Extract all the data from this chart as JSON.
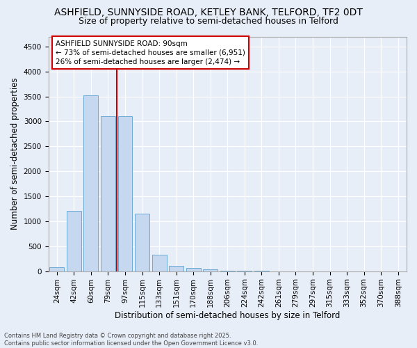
{
  "title1": "ASHFIELD, SUNNYSIDE ROAD, KETLEY BANK, TELFORD, TF2 0DT",
  "title2": "Size of property relative to semi-detached houses in Telford",
  "xlabel": "Distribution of semi-detached houses by size in Telford",
  "ylabel": "Number of semi-detached properties",
  "categories": [
    "24sqm",
    "42sqm",
    "60sqm",
    "79sqm",
    "97sqm",
    "115sqm",
    "133sqm",
    "151sqm",
    "170sqm",
    "188sqm",
    "206sqm",
    "224sqm",
    "242sqm",
    "261sqm",
    "279sqm",
    "297sqm",
    "315sqm",
    "333sqm",
    "352sqm",
    "370sqm",
    "388sqm"
  ],
  "values": [
    75,
    1210,
    3520,
    3110,
    3110,
    1145,
    335,
    105,
    65,
    30,
    10,
    5,
    2,
    1,
    0,
    0,
    0,
    0,
    0,
    0,
    0
  ],
  "bar_color": "#c5d8f0",
  "bar_edge_color": "#6aaad4",
  "vline_index": 3.5,
  "annotation_title": "ASHFIELD SUNNYSIDE ROAD: 90sqm",
  "annotation_line1": "← 73% of semi-detached houses are smaller (6,951)",
  "annotation_line2": "26% of semi-detached houses are larger (2,474) →",
  "annotation_box_color": "#ffffff",
  "annotation_box_edge": "#cc0000",
  "vline_color": "#cc0000",
  "ylim": [
    0,
    4700
  ],
  "yticks": [
    0,
    500,
    1000,
    1500,
    2000,
    2500,
    3000,
    3500,
    4000,
    4500
  ],
  "background_color": "#e8eef8",
  "grid_color": "#ffffff",
  "footer1": "Contains HM Land Registry data © Crown copyright and database right 2025.",
  "footer2": "Contains public sector information licensed under the Open Government Licence v3.0.",
  "title_fontsize": 10,
  "subtitle_fontsize": 9,
  "axis_label_fontsize": 8.5,
  "tick_fontsize": 7.5,
  "annot_fontsize": 7.5,
  "footer_fontsize": 6
}
